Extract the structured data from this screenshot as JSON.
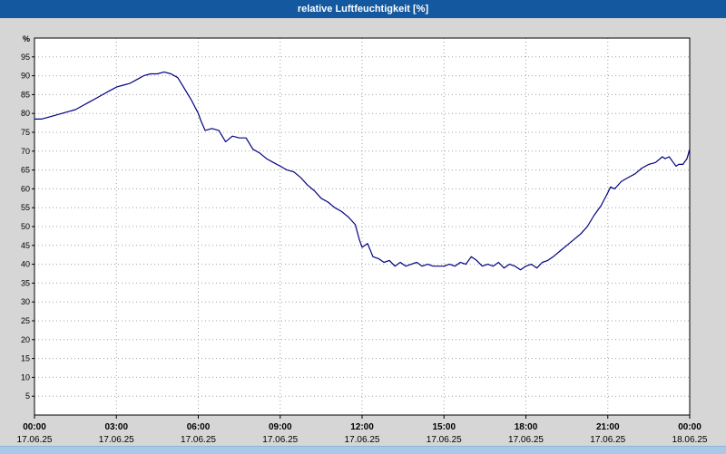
{
  "window": {
    "title": "relative Luftfeuchtigkeit [%]"
  },
  "colors": {
    "titlebar_bg": "#1459a0",
    "titlebar_text": "#ffffff",
    "chart_bg": "#d6d6d6",
    "plot_bg": "#ffffff",
    "grid": "#a0a0a0",
    "axis": "#000000",
    "line": "#000080",
    "footer_strip": "#a9c9e8"
  },
  "chart_data": {
    "type": "line",
    "title": "relative Luftfeuchtigkeit [%]",
    "xlabel": "",
    "ylabel": "%",
    "ylim": [
      0,
      100
    ],
    "ytick_step": 5,
    "ytick_labels": [
      "5",
      "10",
      "15",
      "20",
      "25",
      "30",
      "35",
      "40",
      "45",
      "50",
      "55",
      "60",
      "65",
      "70",
      "75",
      "80",
      "85",
      "90",
      "95"
    ],
    "xlim_hours": [
      0,
      24
    ],
    "grid": true,
    "legend_position": "none",
    "xticks": [
      {
        "hour": 0,
        "time": "00:00",
        "date": "17.06.25"
      },
      {
        "hour": 3,
        "time": "03:00",
        "date": "17.06.25"
      },
      {
        "hour": 6,
        "time": "06:00",
        "date": "17.06.25"
      },
      {
        "hour": 9,
        "time": "09:00",
        "date": "17.06.25"
      },
      {
        "hour": 12,
        "time": "12:00",
        "date": "17.06.25"
      },
      {
        "hour": 15,
        "time": "15:00",
        "date": "17.06.25"
      },
      {
        "hour": 18,
        "time": "18:00",
        "date": "17.06.25"
      },
      {
        "hour": 21,
        "time": "21:00",
        "date": "17.06.25"
      },
      {
        "hour": 24,
        "time": "00:00",
        "date": "18.06.25"
      }
    ],
    "series": [
      {
        "name": "relative Luftfeuchtigkeit",
        "color": "#000080",
        "points": [
          [
            0.0,
            78.5
          ],
          [
            0.25,
            78.5
          ],
          [
            0.5,
            79
          ],
          [
            0.75,
            79.5
          ],
          [
            1.0,
            80
          ],
          [
            1.25,
            80.5
          ],
          [
            1.5,
            81
          ],
          [
            1.75,
            82
          ],
          [
            2.0,
            83
          ],
          [
            2.25,
            84
          ],
          [
            2.5,
            85
          ],
          [
            2.75,
            86
          ],
          [
            3.0,
            87
          ],
          [
            3.25,
            87.5
          ],
          [
            3.5,
            88
          ],
          [
            3.75,
            89
          ],
          [
            4.0,
            90
          ],
          [
            4.25,
            90.5
          ],
          [
            4.5,
            90.5
          ],
          [
            4.75,
            91
          ],
          [
            5.0,
            90.5
          ],
          [
            5.25,
            89.5
          ],
          [
            5.5,
            86.5
          ],
          [
            5.75,
            83.5
          ],
          [
            6.0,
            80
          ],
          [
            6.1,
            78
          ],
          [
            6.25,
            75.5
          ],
          [
            6.5,
            76
          ],
          [
            6.75,
            75.5
          ],
          [
            7.0,
            72.5
          ],
          [
            7.25,
            74
          ],
          [
            7.5,
            73.5
          ],
          [
            7.75,
            73.5
          ],
          [
            8.0,
            70.5
          ],
          [
            8.25,
            69.5
          ],
          [
            8.5,
            68
          ],
          [
            8.75,
            67
          ],
          [
            9.0,
            66
          ],
          [
            9.25,
            65
          ],
          [
            9.5,
            64.5
          ],
          [
            9.75,
            63
          ],
          [
            10.0,
            61
          ],
          [
            10.25,
            59.5
          ],
          [
            10.5,
            57.5
          ],
          [
            10.75,
            56.5
          ],
          [
            11.0,
            55
          ],
          [
            11.25,
            54
          ],
          [
            11.5,
            52.5
          ],
          [
            11.75,
            50.5
          ],
          [
            11.9,
            46.5
          ],
          [
            12.0,
            44.5
          ],
          [
            12.2,
            45.5
          ],
          [
            12.4,
            42
          ],
          [
            12.6,
            41.5
          ],
          [
            12.8,
            40.5
          ],
          [
            13.0,
            41
          ],
          [
            13.2,
            39.5
          ],
          [
            13.4,
            40.5
          ],
          [
            13.6,
            39.5
          ],
          [
            13.8,
            40
          ],
          [
            14.0,
            40.5
          ],
          [
            14.2,
            39.5
          ],
          [
            14.4,
            40
          ],
          [
            14.6,
            39.5
          ],
          [
            14.8,
            39.5
          ],
          [
            15.0,
            39.5
          ],
          [
            15.2,
            40
          ],
          [
            15.4,
            39.5
          ],
          [
            15.6,
            40.5
          ],
          [
            15.8,
            40
          ],
          [
            16.0,
            42
          ],
          [
            16.2,
            41
          ],
          [
            16.4,
            39.5
          ],
          [
            16.6,
            40
          ],
          [
            16.8,
            39.5
          ],
          [
            17.0,
            40.5
          ],
          [
            17.2,
            39
          ],
          [
            17.4,
            40
          ],
          [
            17.6,
            39.5
          ],
          [
            17.8,
            38.5
          ],
          [
            18.0,
            39.5
          ],
          [
            18.2,
            40
          ],
          [
            18.4,
            39
          ],
          [
            18.6,
            40.5
          ],
          [
            18.8,
            41
          ],
          [
            19.0,
            42
          ],
          [
            19.25,
            43.5
          ],
          [
            19.5,
            45
          ],
          [
            19.75,
            46.5
          ],
          [
            20.0,
            48
          ],
          [
            20.25,
            50
          ],
          [
            20.5,
            53
          ],
          [
            20.75,
            55.5
          ],
          [
            21.0,
            59
          ],
          [
            21.1,
            60.5
          ],
          [
            21.25,
            60
          ],
          [
            21.5,
            62
          ],
          [
            21.75,
            63
          ],
          [
            22.0,
            64
          ],
          [
            22.25,
            65.5
          ],
          [
            22.5,
            66.5
          ],
          [
            22.75,
            67
          ],
          [
            23.0,
            68.5
          ],
          [
            23.1,
            68
          ],
          [
            23.25,
            68.5
          ],
          [
            23.4,
            67
          ],
          [
            23.5,
            66
          ],
          [
            23.6,
            66.5
          ],
          [
            23.75,
            66.5
          ],
          [
            23.9,
            68
          ],
          [
            24.0,
            70.5
          ]
        ]
      }
    ]
  }
}
